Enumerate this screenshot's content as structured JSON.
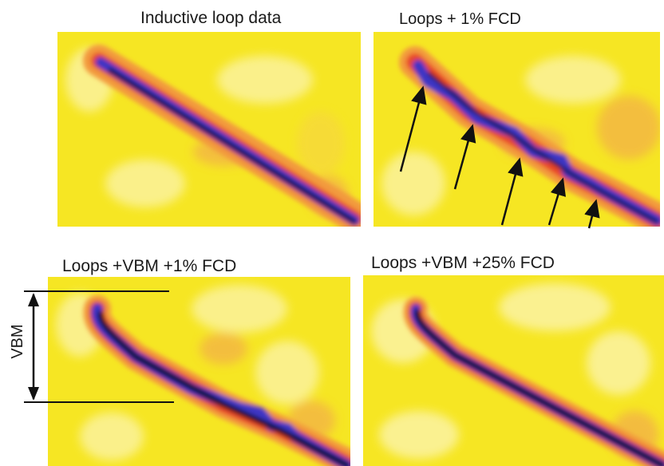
{
  "panels": [
    {
      "title": "Inductive loop data"
    },
    {
      "title": "Loops + 1% FCD"
    },
    {
      "title": "Loops +VBM +1% FCD"
    },
    {
      "title": "Loops +VBM +25% FCD"
    }
  ],
  "annotation": {
    "vbm_label": "VBM"
  },
  "colors": {
    "background": "#f6e623",
    "pale": "#fbf3a4",
    "orange": "#f29a3c",
    "red": "#e8452a",
    "blue": "#3e36c4",
    "core": "#0a0a1e",
    "text": "#1a1a1a"
  }
}
